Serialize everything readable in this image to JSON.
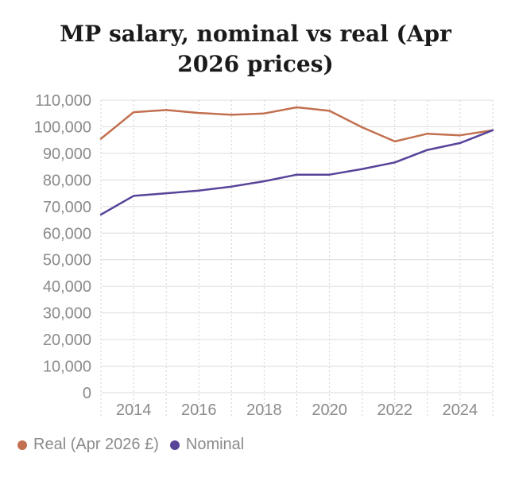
{
  "chart_data": {
    "type": "line",
    "title_lines": [
      "MP salary, nominal vs real (Apr",
      "2026 prices)"
    ],
    "xlabel": "",
    "ylabel": "",
    "x": [
      2013,
      2014,
      2015,
      2016,
      2017,
      2018,
      2019,
      2020,
      2021,
      2022,
      2023,
      2024,
      2025
    ],
    "x_tick_values": [
      2014,
      2016,
      2018,
      2020,
      2022,
      2024
    ],
    "x_tick_labels": [
      "2014",
      "2016",
      "2018",
      "2020",
      "2022",
      "2024"
    ],
    "xlim": [
      2013,
      2025
    ],
    "ylim": [
      0,
      110000
    ],
    "y_tick_values": [
      0,
      10000,
      20000,
      30000,
      40000,
      50000,
      60000,
      70000,
      80000,
      90000,
      100000,
      110000
    ],
    "y_tick_labels": [
      "0",
      "10,000",
      "20,000",
      "30,000",
      "40,000",
      "50,000",
      "60,000",
      "70,000",
      "80,000",
      "90,000",
      "100,000",
      "110,000"
    ],
    "grid": true,
    "legend_position": "bottom-left",
    "series": [
      {
        "name": "Real (Apr 2026 £)",
        "color": "#c2704f",
        "values": [
          95500,
          105500,
          106300,
          105200,
          104500,
          105000,
          107300,
          106000,
          99800,
          94500,
          97400,
          96800,
          98700
        ]
      },
      {
        "name": "Nominal",
        "color": "#574499",
        "values": [
          67000,
          74000,
          75000,
          76000,
          77500,
          79500,
          82000,
          82000,
          84100,
          86600,
          91300,
          93900,
          98700
        ]
      }
    ]
  }
}
